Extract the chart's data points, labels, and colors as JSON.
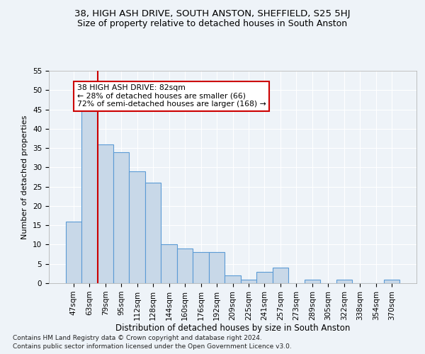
{
  "title1": "38, HIGH ASH DRIVE, SOUTH ANSTON, SHEFFIELD, S25 5HJ",
  "title2": "Size of property relative to detached houses in South Anston",
  "xlabel": "Distribution of detached houses by size in South Anston",
  "ylabel": "Number of detached properties",
  "categories": [
    "47sqm",
    "63sqm",
    "79sqm",
    "95sqm",
    "112sqm",
    "128sqm",
    "144sqm",
    "160sqm",
    "176sqm",
    "192sqm",
    "209sqm",
    "225sqm",
    "241sqm",
    "257sqm",
    "273sqm",
    "289sqm",
    "305sqm",
    "322sqm",
    "338sqm",
    "354sqm",
    "370sqm"
  ],
  "values": [
    16,
    45,
    36,
    34,
    29,
    26,
    10,
    9,
    8,
    8,
    2,
    1,
    3,
    4,
    0,
    1,
    0,
    1,
    0,
    0,
    1
  ],
  "bar_color": "#c8d8e8",
  "bar_edge_color": "#5b9bd5",
  "vline_x_idx": 2,
  "vline_color": "#cc0000",
  "annotation_title": "38 HIGH ASH DRIVE: 82sqm",
  "annotation_line1": "← 28% of detached houses are smaller (66)",
  "annotation_line2": "72% of semi-detached houses are larger (168) →",
  "annotation_box_color": "#ffffff",
  "annotation_box_edge": "#cc0000",
  "ylim": [
    0,
    55
  ],
  "yticks": [
    0,
    5,
    10,
    15,
    20,
    25,
    30,
    35,
    40,
    45,
    50,
    55
  ],
  "footer1": "Contains HM Land Registry data © Crown copyright and database right 2024.",
  "footer2": "Contains public sector information licensed under the Open Government Licence v3.0.",
  "bg_color": "#eef3f8",
  "plot_bg_color": "#eef3f8",
  "grid_color": "#ffffff",
  "title_fontsize": 9.5,
  "subtitle_fontsize": 9,
  "tick_fontsize": 7.5,
  "ylabel_fontsize": 8,
  "xlabel_fontsize": 8.5,
  "footer_fontsize": 6.5
}
